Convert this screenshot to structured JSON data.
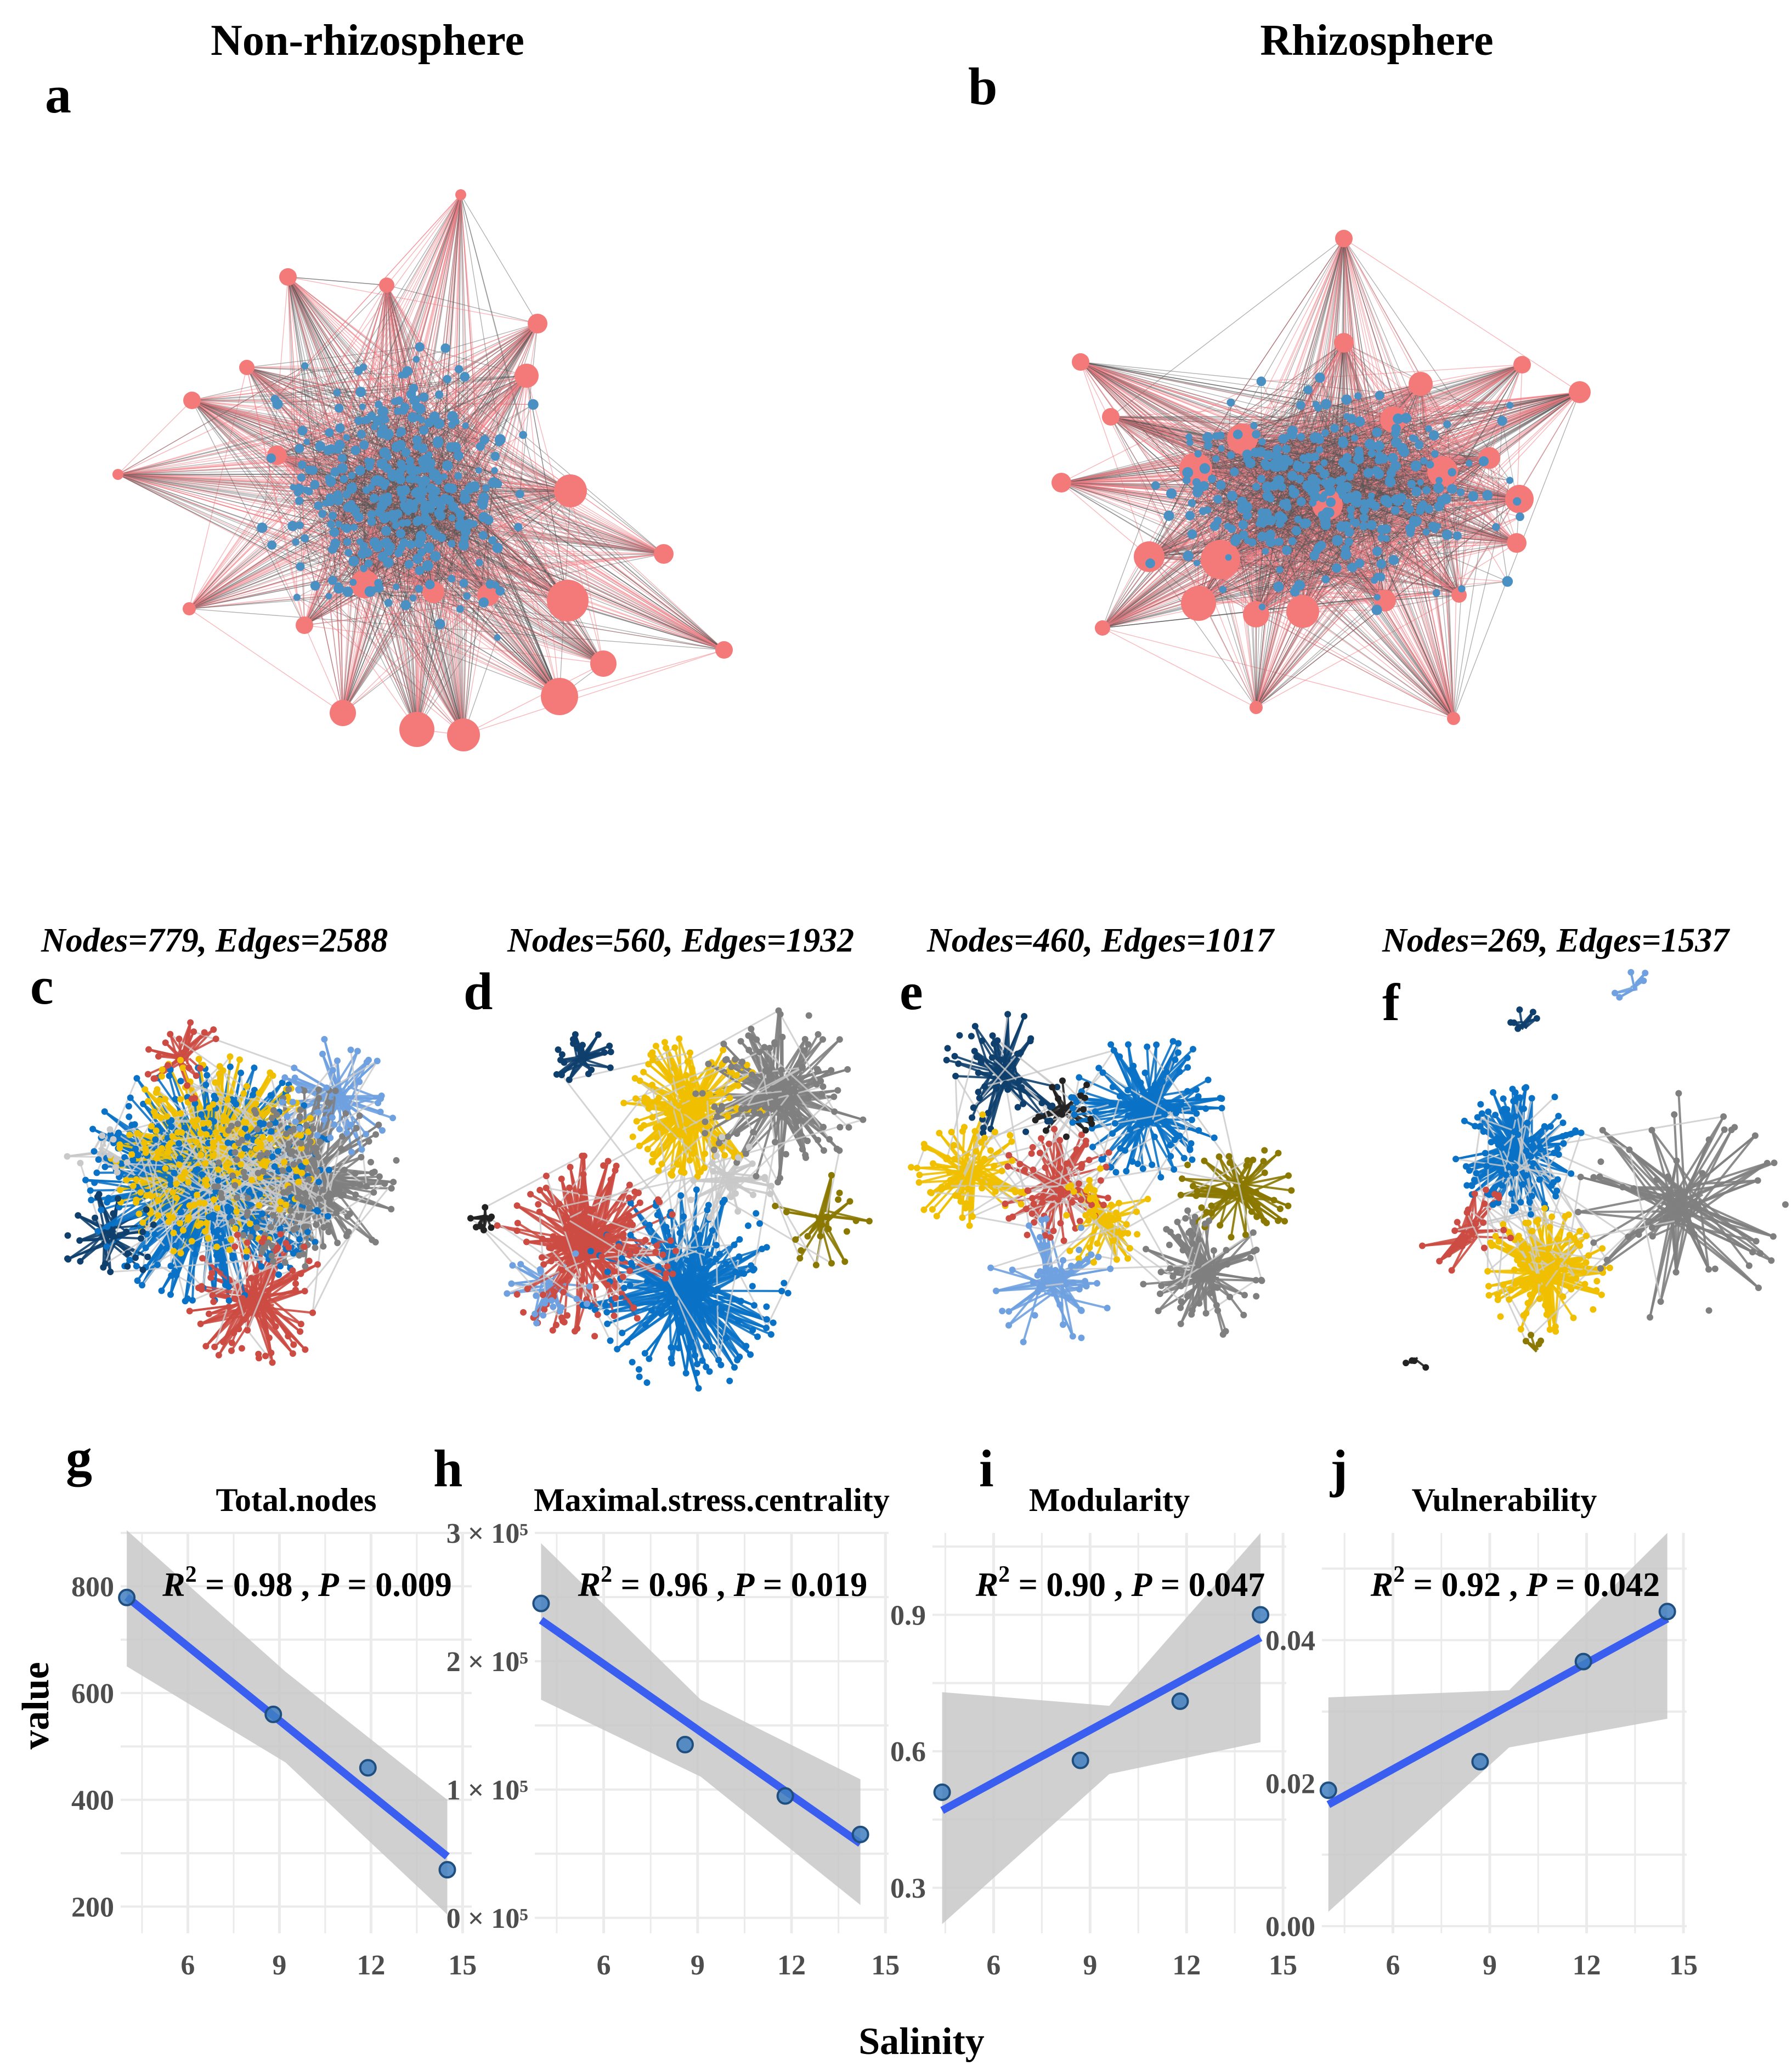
{
  "figure": {
    "header_left": "Non-rhizosphere",
    "header_right": "Rhizosphere",
    "label_a": "a",
    "label_b": "b",
    "colors": {
      "blue_node": "#4a90c2",
      "pink_node": "#f47a7a",
      "pink_edge": "#f27c84",
      "gray_edge": "#555555",
      "fit_line": "#3a5ef0",
      "band": "#c8c8c8",
      "panel_bg": "#ffffff",
      "grid": "#ebebeb"
    },
    "module_colors": [
      "#0a72c6",
      "#f0c000",
      "#7f7f7f",
      "#cc4b43",
      "#6fa1e0",
      "#0e3f6d",
      "#8a7800",
      "#222222",
      "#c9c9c9"
    ]
  },
  "networks": [
    {
      "label": "c",
      "caption": "Nodes=779, Edges=2588"
    },
    {
      "label": "d",
      "caption": "Nodes=560, Edges=1932"
    },
    {
      "label": "e",
      "caption": "Nodes=460, Edges=1017"
    },
    {
      "label": "f",
      "caption": "Nodes=269, Edges=1537"
    }
  ],
  "axes": {
    "ylabel": "value",
    "xlabel": "Salinity"
  },
  "chart_data": [
    {
      "label": "g",
      "type": "scatter",
      "title": "Total.nodes",
      "stat_r2": "0.98",
      "stat_p": "0.009",
      "x": [
        4.0,
        8.8,
        11.9,
        14.5
      ],
      "y": [
        779,
        560,
        460,
        269
      ],
      "fit": {
        "x0": 4.0,
        "y0": 780,
        "x1": 14.5,
        "y1": 294
      },
      "band": [
        [
          4.0,
          650,
          905
        ],
        [
          9.2,
          470,
          640
        ],
        [
          14.5,
          185,
          400
        ]
      ],
      "xlim": [
        3.8,
        15.3
      ],
      "ylim": [
        150,
        900
      ],
      "xticks": [
        6,
        9,
        12,
        15
      ],
      "yticks": [
        200,
        400,
        600,
        800
      ],
      "ytick_labels": [
        "200",
        "400",
        "600",
        "800"
      ]
    },
    {
      "label": "h",
      "type": "scatter",
      "title": "Maximal.stress.centrality",
      "stat_r2": "0.96",
      "stat_p": "0.019",
      "x": [
        4.0,
        8.6,
        11.8,
        14.2
      ],
      "y": [
        245000,
        135000,
        95000,
        65000
      ],
      "fit": {
        "x0": 4.0,
        "y0": 232000,
        "x1": 14.2,
        "y1": 58000
      },
      "band": [
        [
          4.0,
          170000,
          292000
        ],
        [
          9.1,
          110000,
          170000
        ],
        [
          14.2,
          10000,
          108000
        ]
      ],
      "xlim": [
        3.8,
        15.1
      ],
      "ylim": [
        -12000,
        300000
      ],
      "xticks": [
        6,
        9,
        12,
        15
      ],
      "yticks": [
        0,
        100000,
        200000,
        300000
      ],
      "ytick_labels": [
        "0 × 10⁵",
        "1 × 10⁵",
        "2 × 10⁵",
        "3 × 10⁵"
      ]
    },
    {
      "label": "i",
      "type": "scatter",
      "title": "Modularity",
      "stat_r2": "0.90",
      "stat_p": "0.047",
      "x": [
        4.4,
        8.7,
        11.8,
        14.3
      ],
      "y": [
        0.51,
        0.58,
        0.71,
        0.9
      ],
      "fit": {
        "x0": 4.4,
        "y0": 0.47,
        "x1": 14.3,
        "y1": 0.85
      },
      "band": [
        [
          4.4,
          0.22,
          0.73
        ],
        [
          9.6,
          0.55,
          0.7
        ],
        [
          14.3,
          0.62,
          1.08
        ]
      ],
      "xlim": [
        4.1,
        15.1
      ],
      "ylim": [
        0.2,
        1.08
      ],
      "xticks": [
        6,
        9,
        12,
        15
      ],
      "yticks": [
        0.3,
        0.6,
        0.9
      ],
      "ytick_labels": [
        "0.3",
        "0.6",
        "0.9"
      ]
    },
    {
      "label": "j",
      "type": "scatter",
      "title": "Vulnerability",
      "stat_r2": "0.92",
      "stat_p": "0.042",
      "x": [
        4.0,
        8.7,
        11.9,
        14.5
      ],
      "y": [
        0.019,
        0.023,
        0.037,
        0.044
      ],
      "fit": {
        "x0": 4.0,
        "y0": 0.017,
        "x1": 14.5,
        "y1": 0.043
      },
      "band": [
        [
          4.0,
          0.002,
          0.032
        ],
        [
          9.6,
          0.025,
          0.033
        ],
        [
          14.5,
          0.029,
          0.055
        ]
      ],
      "xlim": [
        3.8,
        15.1
      ],
      "ylim": [
        -0.001,
        0.055
      ],
      "xticks": [
        6,
        9,
        12,
        15
      ],
      "yticks": [
        0.0,
        0.02,
        0.04
      ],
      "ytick_labels": [
        "0.00",
        "0.02",
        "0.04"
      ]
    }
  ]
}
